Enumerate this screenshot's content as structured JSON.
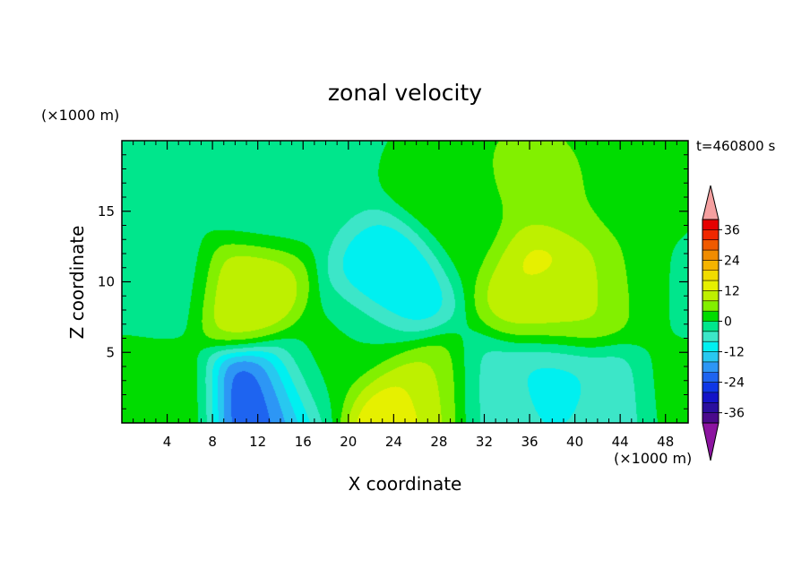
{
  "chart_data": {
    "type": "heatmap",
    "title": "zonal velocity",
    "xlabel": "X coordinate",
    "ylabel": "Z coordinate",
    "x_unit": "(×1000 m)",
    "y_unit": "(×1000 m)",
    "time_label": "t=460800 s",
    "xlim": [
      0,
      50
    ],
    "ylim": [
      0,
      20
    ],
    "x_ticks": [
      4,
      8,
      12,
      16,
      20,
      24,
      28,
      32,
      36,
      40,
      44,
      48
    ],
    "y_ticks": [
      5,
      10,
      15
    ],
    "colorbar": {
      "levels": [
        -40,
        -36,
        -32,
        -28,
        -24,
        -20,
        -16,
        -12,
        -8,
        -4,
        0,
        4,
        8,
        12,
        16,
        20,
        24,
        28,
        32,
        36,
        40
      ],
      "tick_labels": [
        36,
        24,
        12,
        0,
        -12,
        -24,
        -36
      ],
      "colors": [
        "#4b0a8c",
        "#2a0f9e",
        "#1414c8",
        "#0f37e6",
        "#1e64f0",
        "#2d96f5",
        "#28c8f0",
        "#00f0f0",
        "#3ce6c8",
        "#00e68c",
        "#00dc00",
        "#82f000",
        "#bef000",
        "#e6f000",
        "#f0dc00",
        "#f5b400",
        "#f08c00",
        "#f05a00",
        "#f02800",
        "#e60000"
      ],
      "under_color": "#8c14a0",
      "over_color": "#f5a0a0"
    },
    "field_components": [
      {
        "x": 4,
        "z": 10,
        "u": -2
      },
      {
        "x": 11,
        "z": 9,
        "u": 12
      },
      {
        "x": 12,
        "z": 16,
        "u": -2
      },
      {
        "x": 11,
        "z": 1,
        "u": -30
      },
      {
        "x": 14,
        "z": 1.5,
        "u": -16
      },
      {
        "x": 6,
        "z": 0.8,
        "u": 5
      },
      {
        "x": 17,
        "z": 3,
        "u": 3
      },
      {
        "x": 21,
        "z": 5.5,
        "u": 0
      },
      {
        "x": 24,
        "z": 10,
        "u": -12
      },
      {
        "x": 24,
        "z": 0.7,
        "u": 18
      },
      {
        "x": 27,
        "z": 1.5,
        "u": 8
      },
      {
        "x": 29,
        "z": 17,
        "u": 3
      },
      {
        "x": 31,
        "z": 14,
        "u": 2
      },
      {
        "x": 37,
        "z": 9,
        "u": 10
      },
      {
        "x": 37,
        "z": 11,
        "u": 15
      },
      {
        "x": 40,
        "z": 8.5,
        "u": 9
      },
      {
        "x": 36,
        "z": 17,
        "u": 6
      },
      {
        "x": 40,
        "z": 16,
        "u": 4
      },
      {
        "x": 38,
        "z": 3,
        "u": -10
      },
      {
        "x": 43,
        "z": 1.5,
        "u": -7
      },
      {
        "x": 46,
        "z": 10,
        "u": 5
      },
      {
        "x": 46,
        "z": 16,
        "u": 4
      },
      {
        "x": 49,
        "z": 2,
        "u": 2
      },
      {
        "x": 49,
        "z": 10,
        "u": -3
      },
      {
        "x": 2,
        "z": 1.5,
        "u": 3
      },
      {
        "x": 1,
        "z": 18,
        "u": -2
      },
      {
        "x": 33,
        "z": 1.5,
        "u": -6
      }
    ]
  }
}
